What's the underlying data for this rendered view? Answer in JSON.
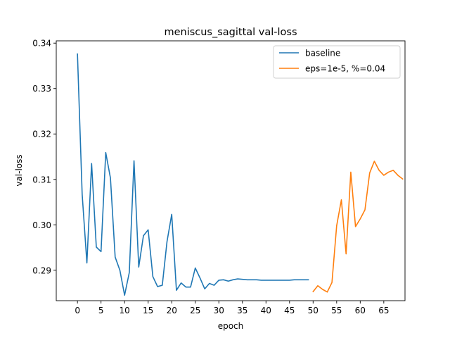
{
  "chart_data": {
    "type": "line",
    "title": "meniscus_sagittal val-loss",
    "xlabel": "epoch",
    "ylabel": "val-loss",
    "xlim": [
      -4.5,
      69.5
    ],
    "ylim": [
      0.2833,
      0.3405
    ],
    "xticks": [
      "0",
      "5",
      "10",
      "15",
      "20",
      "25",
      "30",
      "35",
      "40",
      "45",
      "50",
      "55",
      "60",
      "65"
    ],
    "yticks": [
      "0.29",
      "0.30",
      "0.31",
      "0.32",
      "0.33",
      "0.34"
    ],
    "grid": false,
    "legend_position": "top-right",
    "series": [
      {
        "name": "baseline",
        "color": "#1f77b4",
        "x": [
          0,
          1,
          2,
          3,
          4,
          5,
          6,
          7,
          8,
          9,
          10,
          11,
          12,
          13,
          14,
          15,
          16,
          17,
          18,
          19,
          20,
          21,
          22,
          23,
          24,
          25,
          26,
          27,
          28,
          29,
          30,
          31,
          32,
          33,
          34,
          35,
          36,
          37,
          38,
          39,
          40,
          41,
          42,
          43,
          44,
          45,
          46,
          47,
          48,
          49
        ],
        "values": [
          0.3376,
          0.3067,
          0.2916,
          0.3135,
          0.2951,
          0.2941,
          0.3159,
          0.3103,
          0.2929,
          0.29,
          0.2845,
          0.2895,
          0.3141,
          0.2907,
          0.2976,
          0.2989,
          0.2886,
          0.2864,
          0.2867,
          0.2963,
          0.3023,
          0.2856,
          0.2872,
          0.2863,
          0.2863,
          0.2905,
          0.2883,
          0.2859,
          0.2871,
          0.2867,
          0.2878,
          0.2879,
          0.2876,
          0.2879,
          0.2881,
          0.288,
          0.2879,
          0.2879,
          0.2879,
          0.2878,
          0.2878,
          0.2878,
          0.2878,
          0.2878,
          0.2878,
          0.2878,
          0.2879,
          0.2879,
          0.2879,
          0.2879
        ]
      },
      {
        "name": "eps=1e-5, %=0.04",
        "color": "#ff7f0e",
        "x": [
          50,
          51,
          52,
          53,
          54,
          55,
          56,
          57,
          58,
          59,
          60,
          61,
          62,
          63,
          64,
          65,
          66,
          67,
          68,
          69
        ],
        "values": [
          0.2853,
          0.2866,
          0.2858,
          0.2852,
          0.2873,
          0.2998,
          0.3055,
          0.2936,
          0.3116,
          0.2996,
          0.3013,
          0.3033,
          0.3114,
          0.314,
          0.312,
          0.3109,
          0.3116,
          0.312,
          0.3109,
          0.3101
        ]
      }
    ]
  }
}
